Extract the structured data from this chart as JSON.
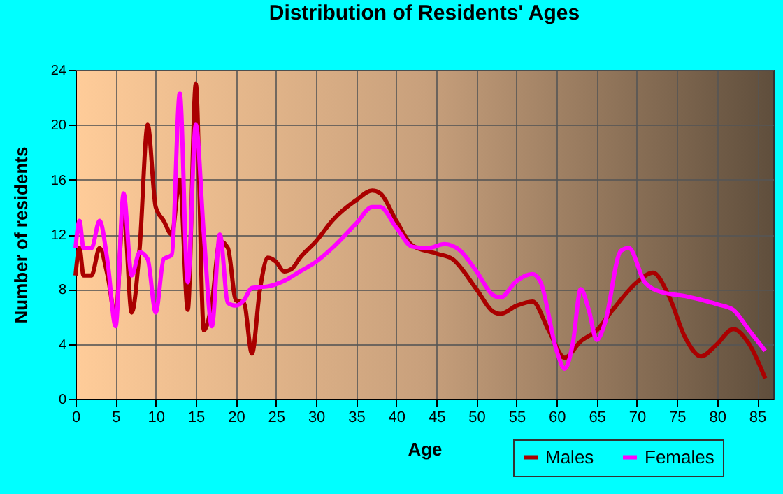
{
  "chart_data": {
    "type": "line",
    "title": "Distribution of Residents' Ages",
    "xlabel": "Age",
    "ylabel": "Number of residents",
    "xlim": [
      0,
      87
    ],
    "xticks": [
      0,
      5,
      10,
      15,
      20,
      25,
      30,
      35,
      40,
      45,
      50,
      55,
      60,
      65,
      70,
      75,
      80,
      85
    ],
    "ylim": [
      0,
      24
    ],
    "yticks": [
      0,
      4,
      8,
      12,
      16,
      20,
      24
    ],
    "grid": true,
    "legend": "bottom right",
    "marker": "none",
    "line_style": "solid",
    "series": [
      {
        "name": "Males",
        "color": "#aa0000",
        "x": [
          0,
          0.5,
          1,
          2,
          3,
          4,
          5,
          6,
          7,
          8,
          9,
          10,
          11,
          12,
          13,
          14,
          15,
          16,
          17,
          18,
          19,
          20,
          21,
          22,
          23,
          24,
          25,
          26,
          27,
          28,
          30,
          32,
          35,
          37,
          38,
          40,
          42,
          45,
          47,
          50,
          52,
          53,
          55,
          57,
          59,
          61,
          63,
          65,
          67,
          70,
          72,
          74,
          76,
          78,
          80,
          82,
          84,
          86
        ],
        "values": [
          9,
          11,
          9,
          9,
          11,
          9,
          6,
          14,
          6.3,
          11,
          20,
          14,
          13,
          12,
          16,
          6.5,
          23,
          5,
          7,
          11.5,
          11,
          7.2,
          7,
          3.3,
          8,
          10.3,
          10,
          9.3,
          9.5,
          10.3,
          11.5,
          13,
          14.5,
          15.2,
          15,
          13,
          11.2,
          10.6,
          10.2,
          8,
          6.4,
          6.2,
          6.8,
          7.1,
          5,
          3,
          4.2,
          5,
          6.5,
          8.5,
          9.2,
          7.5,
          4.5,
          3.1,
          4,
          5.1,
          4,
          1.5
        ]
      },
      {
        "name": "Females",
        "color": "#ff00ff",
        "x": [
          0,
          0.5,
          1,
          2,
          3,
          4,
          5,
          6,
          7,
          8,
          9,
          10,
          11,
          12,
          13,
          14,
          15,
          16,
          17,
          18,
          19,
          20,
          21,
          22,
          24,
          26,
          28,
          30,
          32,
          35,
          37,
          38,
          40,
          42,
          44,
          46,
          48,
          50,
          52,
          53,
          55,
          57,
          58,
          60,
          61,
          62,
          63,
          64,
          65,
          66,
          68,
          69,
          71,
          73,
          76,
          80,
          82,
          84,
          86
        ],
        "values": [
          11,
          13,
          11,
          11,
          13,
          10,
          5.3,
          15,
          9,
          10.7,
          10.2,
          6.3,
          10.2,
          10.5,
          22.3,
          8.5,
          20,
          12,
          5.3,
          12,
          7,
          6.8,
          7.2,
          8.1,
          8.2,
          8.6,
          9.3,
          10,
          11,
          12.8,
          14,
          14,
          12.5,
          11.1,
          11,
          11.3,
          10.8,
          9.3,
          7.6,
          7.4,
          8.6,
          9.1,
          8.5,
          3.5,
          2.2,
          4,
          8,
          6.5,
          4.3,
          5.5,
          10.8,
          11,
          8.5,
          7.8,
          7.5,
          6.9,
          6.5,
          5,
          3.5
        ]
      }
    ]
  }
}
